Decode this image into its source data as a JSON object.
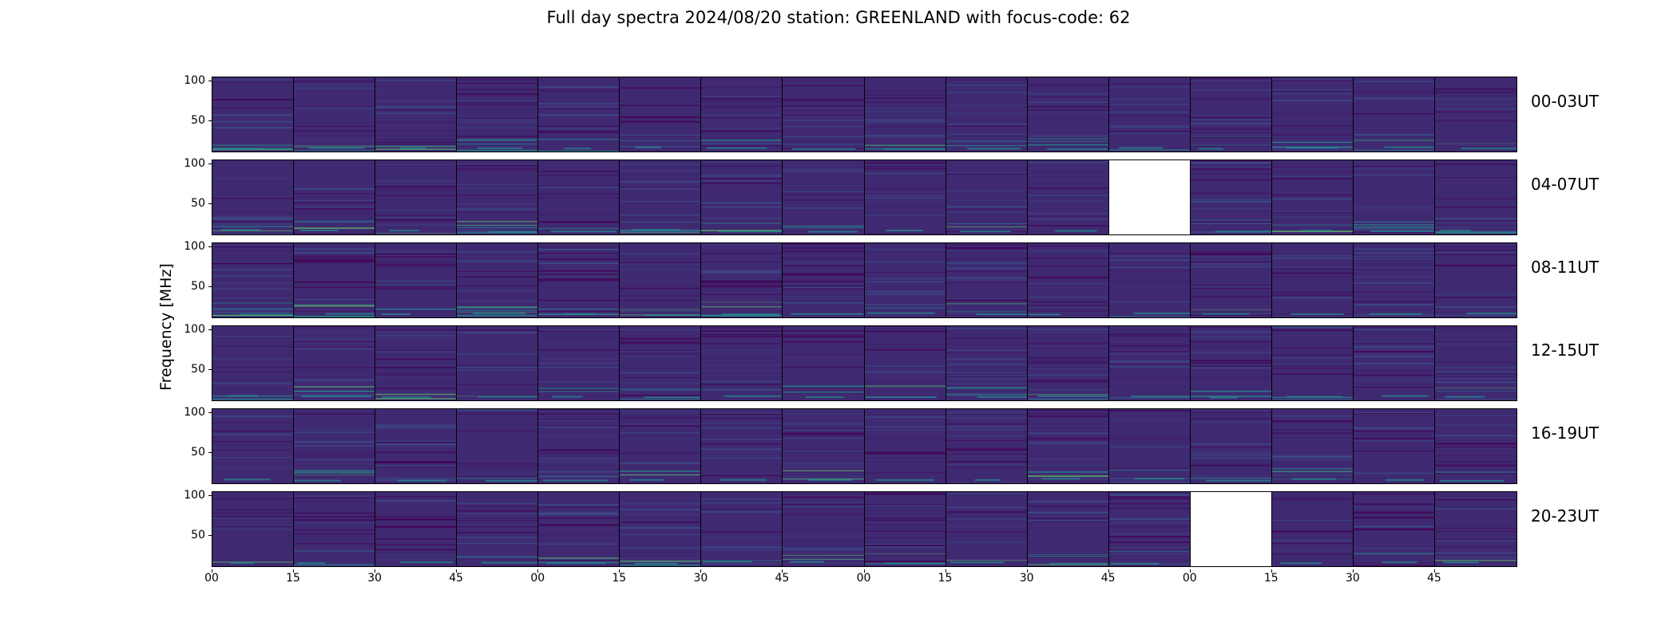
{
  "title": "Full day spectra 2024/08/20 station: GREENLAND with focus-code: 62",
  "chart_data": {
    "type": "heatmap",
    "title": "Full day spectra 2024/08/20 station: GREENLAND with focus-code: 62",
    "ylabel": "Frequency [MHz]",
    "ylim": [
      10,
      105
    ],
    "yticks": [
      50,
      100
    ],
    "panels_per_row": 16,
    "xticks": [
      "00",
      "15",
      "30",
      "45",
      "00",
      "15",
      "30",
      "45",
      "00",
      "15",
      "30",
      "45",
      "00",
      "15",
      "30",
      "45"
    ],
    "rows": [
      {
        "label": "00-03UT",
        "missing_panels": []
      },
      {
        "label": "04-07UT",
        "missing_panels": [
          11
        ]
      },
      {
        "label": "08-11UT",
        "missing_panels": []
      },
      {
        "label": "12-15UT",
        "missing_panels": []
      },
      {
        "label": "16-19UT",
        "missing_panels": []
      },
      {
        "label": "20-23UT",
        "missing_panels": [
          12
        ]
      }
    ],
    "colors": {
      "background": "#3f2a72",
      "low": "#440154",
      "mid": "#3b528b",
      "high": "#21918c",
      "peak": "#5ec962",
      "missing": "#ffffff"
    }
  }
}
